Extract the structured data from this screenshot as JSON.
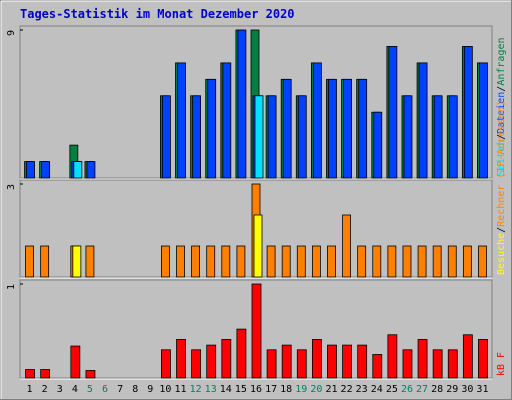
{
  "chart_data": [
    {
      "type": "bar",
      "title": "Tages-Statistik im Monat Dezember 2020",
      "legend_separator": "/",
      "ylim": [
        0,
        9
      ],
      "yticks": [
        9
      ],
      "series": [
        {
          "name": "Anfragen",
          "color": "#008040",
          "values": [
            1,
            1,
            0,
            2,
            1,
            0,
            0,
            0,
            0,
            5,
            7,
            5,
            6,
            7,
            9,
            9,
            5,
            6,
            5,
            7,
            6,
            6,
            6,
            4,
            8,
            5,
            7,
            5,
            5,
            8,
            7
          ]
        },
        {
          "name": "Dateien",
          "color": "#0040FF",
          "values": [
            1,
            1,
            0,
            1,
            1,
            0,
            0,
            0,
            0,
            5,
            7,
            5,
            6,
            7,
            9,
            5,
            5,
            6,
            5,
            7,
            6,
            6,
            6,
            4,
            8,
            5,
            7,
            5,
            5,
            8,
            7
          ]
        },
        {
          "name": "Seiten",
          "color": "#00E0FF",
          "values": [
            0,
            0,
            0,
            1,
            0,
            0,
            0,
            0,
            0,
            0,
            0,
            0,
            0,
            0,
            0,
            5,
            0,
            0,
            0,
            0,
            0,
            0,
            0,
            0,
            0,
            0,
            0,
            0,
            0,
            0,
            0
          ]
        }
      ]
    },
    {
      "type": "bar",
      "legend_separator": "/",
      "ylim": [
        0,
        3
      ],
      "yticks": [
        3
      ],
      "series": [
        {
          "name": "Rechner (IP-Adressen)",
          "color": "#FF8000",
          "values": [
            1,
            1,
            0,
            1,
            1,
            0,
            0,
            0,
            0,
            1,
            1,
            1,
            1,
            1,
            1,
            3,
            1,
            1,
            1,
            1,
            1,
            2,
            1,
            1,
            1,
            1,
            1,
            1,
            1,
            1,
            1
          ]
        },
        {
          "name": "Besuche",
          "color": "#FFFF00",
          "values": [
            0,
            0,
            0,
            1,
            0,
            0,
            0,
            0,
            0,
            0,
            0,
            0,
            0,
            0,
            0,
            2,
            0,
            0,
            0,
            0,
            0,
            0,
            0,
            0,
            0,
            0,
            0,
            0,
            0,
            0,
            0
          ]
        }
      ]
    },
    {
      "type": "bar",
      "ylim": [
        0,
        1
      ],
      "yticks": [
        1
      ],
      "categories": [
        "1",
        "2",
        "3",
        "4",
        "5",
        "6",
        "7",
        "8",
        "9",
        "10",
        "11",
        "12",
        "13",
        "14",
        "15",
        "16",
        "17",
        "18",
        "19",
        "20",
        "21",
        "22",
        "23",
        "24",
        "25",
        "26",
        "27",
        "28",
        "29",
        "30",
        "31"
      ],
      "category_colors": [
        "#000000",
        "#000000",
        "#000000",
        "#000000",
        "#00805C",
        "#00805C",
        "#000000",
        "#000000",
        "#000000",
        "#000000",
        "#000000",
        "#00805C",
        "#00805C",
        "#000000",
        "#000000",
        "#000000",
        "#000000",
        "#000000",
        "#00805C",
        "#00805C",
        "#000000",
        "#000000",
        "#000000",
        "#000000",
        "#000000",
        "#00805C",
        "#00805C",
        "#000000",
        "#000000",
        "#000000",
        "#000000"
      ],
      "series": [
        {
          "name": "kB F",
          "color": "#FF0000",
          "values": [
            0.09,
            0.09,
            0,
            0.34,
            0.08,
            0,
            0,
            0,
            0,
            0.3,
            0.41,
            0.3,
            0.35,
            0.41,
            0.52,
            1,
            0.3,
            0.35,
            0.3,
            0.41,
            0.35,
            0.35,
            0.35,
            0.25,
            0.46,
            0.3,
            0.41,
            0.3,
            0.3,
            0.46,
            0.41
          ]
        }
      ]
    }
  ]
}
